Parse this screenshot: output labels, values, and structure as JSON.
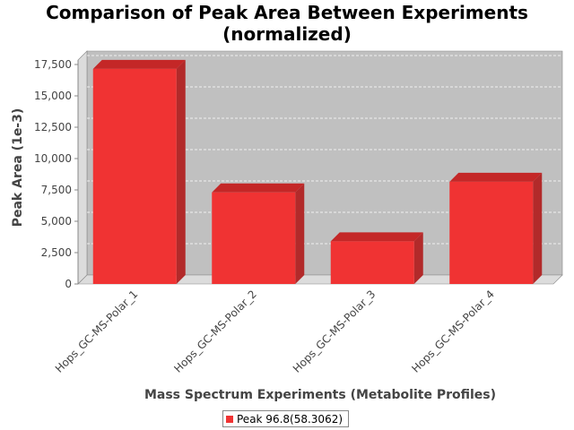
{
  "chart_data": {
    "type": "bar",
    "title_line1": "Comparison of Peak Area Between Experiments",
    "title_line2": "(normalized)",
    "xlabel": "Mass Spectrum Experiments (Metabolite Profiles)",
    "ylabel": "Peak Area (1e-3)",
    "categories": [
      "Hops_GC-MS-Polar_1",
      "Hops_GC-MS-Polar_2",
      "Hops_GC-MS-Polar_3",
      "Hops_GC-MS-Polar_4"
    ],
    "series": [
      {
        "name": "Peak 96.8(58.3062)",
        "values": [
          17150,
          7300,
          3400,
          8150
        ]
      }
    ],
    "ylim": [
      0,
      17500
    ],
    "yticks": [
      0,
      2500,
      5000,
      7500,
      10000,
      12500,
      15000,
      17500
    ],
    "ytick_labels": [
      "0",
      "2,500",
      "5,000",
      "7,500",
      "10,000",
      "12,500",
      "15,000",
      "17,500"
    ],
    "grid": true,
    "legend_position": "bottom",
    "colors": {
      "bar_front": "#f03333",
      "bar_top": "#c42727",
      "bar_side": "#b22a2a",
      "plot_bg": "#c0c0c0",
      "wall": "#dcdcdc"
    }
  }
}
